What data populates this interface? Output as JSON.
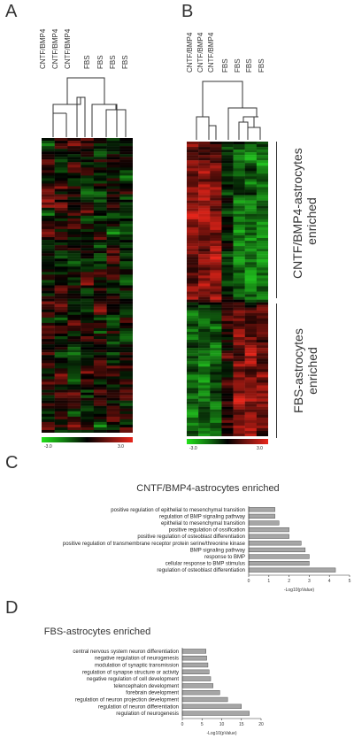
{
  "panels": {
    "A": {
      "letter": "A",
      "columns": [
        "CNTF/BMP4",
        "CNTF/BMP4",
        "CNTF/BMP4",
        "FBS",
        "FBS",
        "FBS",
        "FBS"
      ],
      "scale_min": "-3.0",
      "scale_max": "3.0"
    },
    "B": {
      "letter": "B",
      "columns": [
        "CNTF/BMP4",
        "CNTF/BMP4",
        "CNTF/BMP4",
        "FBS",
        "FBS",
        "FBS",
        "FBS"
      ],
      "scale_min": "-3.0",
      "scale_max": "3.0",
      "group_top_line1": "CNTF/BMP4-astrocytes",
      "group_top_line2": "enriched",
      "group_bottom_line1": "FBS-astrocytes",
      "group_bottom_line2": "enriched"
    },
    "C": {
      "letter": "C"
    },
    "D": {
      "letter": "D"
    }
  },
  "colors": {
    "up": "#e8251a",
    "down": "#22c41f",
    "mid": "#000000",
    "bar": "#a6a6a6"
  },
  "chart_data": [
    {
      "type": "bar",
      "orientation": "horizontal",
      "title": "CNTF/BMP4-astrocytes enriched",
      "xlabel": "-Log10(pValue)",
      "xlim": [
        0,
        5
      ],
      "xticks": [
        "0",
        "1",
        "2",
        "3",
        "4",
        "5"
      ],
      "categories": [
        "positive regulation of epithelial to mesenchymal transition",
        "regulation of BMP signaling pathway",
        "epithelial to mesenchymal transition",
        "positive regulation of ossification",
        "positive regulation of osteoblast differentiation",
        "positive regulation of transmembrane receptor protein serine/threonine kinase",
        "BMP signaling pathway",
        "response to BMP",
        "cellular response to BMP stimulus",
        "regulation of osteoblast differentiation"
      ],
      "values": [
        1.3,
        1.3,
        1.5,
        2.0,
        2.0,
        2.6,
        2.8,
        3.0,
        3.0,
        4.3
      ]
    },
    {
      "type": "bar",
      "orientation": "horizontal",
      "title": "FBS-astrocytes enriched",
      "xlabel": "-Log10(pValue)",
      "xlim": [
        0,
        20
      ],
      "xticks": [
        "0",
        "5",
        "10",
        "15",
        "20"
      ],
      "categories": [
        "central nervous system neuron differentiation",
        "negative regulation of neurogenesis",
        "modulation of synaptic transmission",
        "regulation of synapse structure or activity",
        "negative regulation of cell development",
        "telencephalon development",
        "forebrain development",
        "regulation of neuron projection development",
        "regulation of neuron differentiation",
        "regulation of neurogenesis"
      ],
      "values": [
        6.0,
        6.2,
        6.5,
        6.8,
        7.2,
        7.8,
        9.5,
        11.5,
        15.0,
        17.0
      ]
    }
  ]
}
